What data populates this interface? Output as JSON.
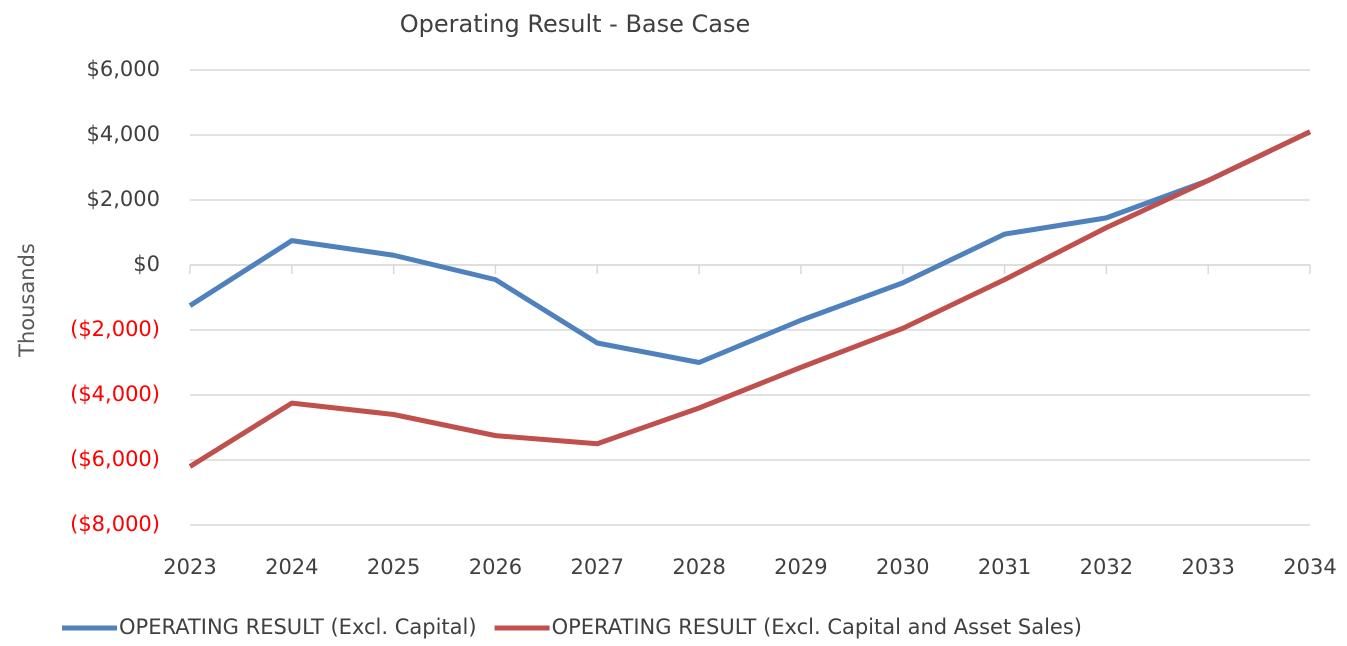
{
  "chart_data": {
    "type": "line",
    "title": "Operating Result - Base Case",
    "y_label": "Thousands",
    "categories": [
      "2023",
      "2024",
      "2025",
      "2026",
      "2027",
      "2028",
      "2029",
      "2030",
      "2031",
      "2032",
      "2033",
      "2034"
    ],
    "series": [
      {
        "name": "OPERATING RESULT (Excl. Capital)",
        "color": "#4f81bd",
        "values": [
          -1250,
          750,
          300,
          -450,
          -2400,
          -3000,
          -1700,
          -550,
          950,
          1450,
          2600,
          4100
        ]
      },
      {
        "name": "OPERATING RESULT (Excl. Capital and Asset Sales)",
        "color": "#c0504d",
        "values": [
          -6200,
          -4250,
          -4600,
          -5250,
          -5500,
          -4400,
          -3150,
          -1950,
          -450,
          1150,
          2600,
          4100
        ]
      }
    ],
    "ylim": [
      -8000,
      6000
    ],
    "yticks": [
      {
        "value": -8000,
        "label": "($8,000)"
      },
      {
        "value": -6000,
        "label": "($6,000)"
      },
      {
        "value": -4000,
        "label": "($4,000)"
      },
      {
        "value": -2000,
        "label": "($2,000)"
      },
      {
        "value": 0,
        "label": "$0"
      },
      {
        "value": 2000,
        "label": "$2,000"
      },
      {
        "value": 4000,
        "label": "$4,000"
      },
      {
        "value": 6000,
        "label": "$6,000"
      }
    ],
    "grid": true,
    "negative_tick_color": "#ff0000",
    "legend": "bottom"
  }
}
